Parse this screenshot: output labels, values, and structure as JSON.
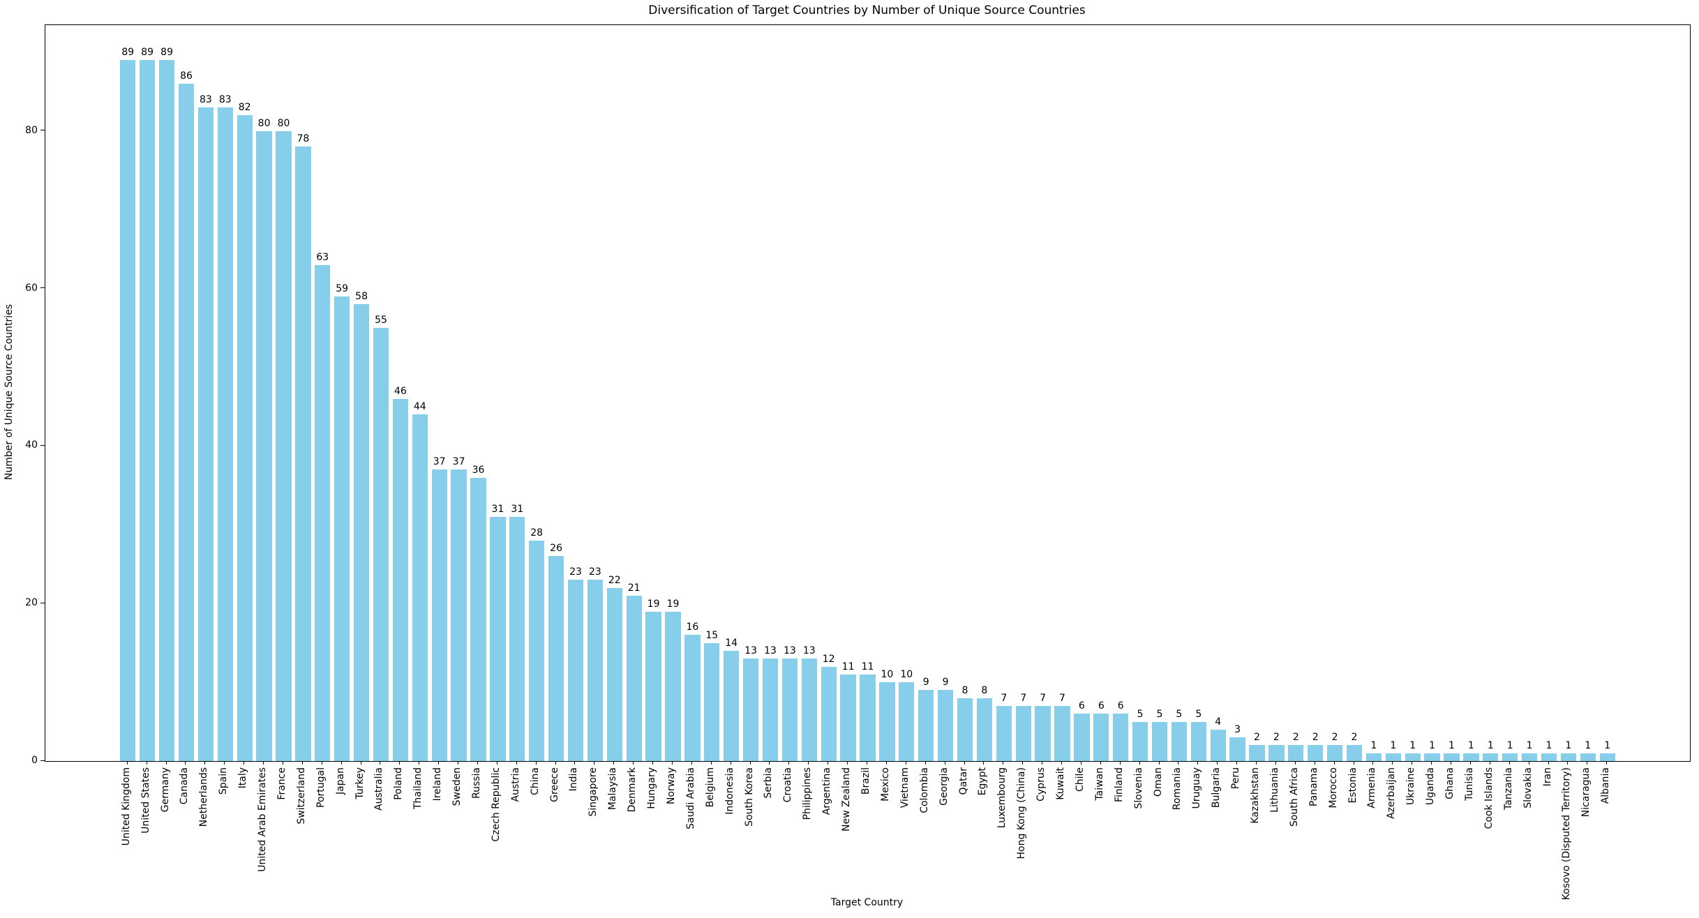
{
  "chart_data": {
    "type": "bar",
    "title": "Diversification of Target Countries by Number of Unique Source Countries",
    "xlabel": "Target Country",
    "ylabel": "Number of Unique Source Countries",
    "categories": [
      "United Kingdom",
      "United States",
      "Germany",
      "Canada",
      "Netherlands",
      "Spain",
      "Italy",
      "United Arab Emirates",
      "France",
      "Switzerland",
      "Portugal",
      "Japan",
      "Turkey",
      "Australia",
      "Poland",
      "Thailand",
      "Ireland",
      "Sweden",
      "Russia",
      "Czech Republic",
      "Austria",
      "China",
      "Greece",
      "India",
      "Singapore",
      "Malaysia",
      "Denmark",
      "Hungary",
      "Norway",
      "Saudi Arabia",
      "Belgium",
      "Indonesia",
      "South Korea",
      "Serbia",
      "Croatia",
      "Philippines",
      "Argentina",
      "New Zealand",
      "Brazil",
      "Mexico",
      "Vietnam",
      "Colombia",
      "Georgia",
      "Qatar",
      "Egypt",
      "Luxembourg",
      "Hong Kong (China)",
      "Cyprus",
      "Kuwait",
      "Chile",
      "Taiwan",
      "Finland",
      "Slovenia",
      "Oman",
      "Romania",
      "Uruguay",
      "Bulgaria",
      "Peru",
      "Kazakhstan",
      "Lithuania",
      "South Africa",
      "Panama",
      "Morocco",
      "Estonia",
      "Armenia",
      "Azerbaijan",
      "Ukraine",
      "Uganda",
      "Ghana",
      "Tunisia",
      "Cook Islands",
      "Tanzania",
      "Slovakia",
      "Iran",
      "Kosovo (Disputed Territory)",
      "Nicaragua",
      "Albania"
    ],
    "values": [
      89,
      89,
      89,
      86,
      83,
      83,
      82,
      80,
      80,
      78,
      63,
      59,
      58,
      55,
      46,
      44,
      37,
      37,
      36,
      31,
      31,
      28,
      26,
      23,
      23,
      22,
      21,
      19,
      19,
      16,
      15,
      14,
      13,
      13,
      13,
      13,
      12,
      11,
      11,
      10,
      10,
      9,
      9,
      8,
      8,
      7,
      7,
      7,
      7,
      6,
      6,
      6,
      5,
      5,
      5,
      5,
      4,
      3,
      2,
      2,
      2,
      2,
      2,
      2,
      1,
      1,
      1,
      1,
      1,
      1,
      1,
      1,
      1,
      1,
      1,
      1,
      1
    ],
    "yticks": [
      0,
      20,
      40,
      60,
      80
    ],
    "ylim": [
      0,
      93.45
    ],
    "xlim": [
      -4.24,
      80.24
    ],
    "bar_width_units": 0.8,
    "bar_color": "#87CEEB",
    "value_labels_shown": true,
    "grid": "off",
    "legend": "none"
  }
}
